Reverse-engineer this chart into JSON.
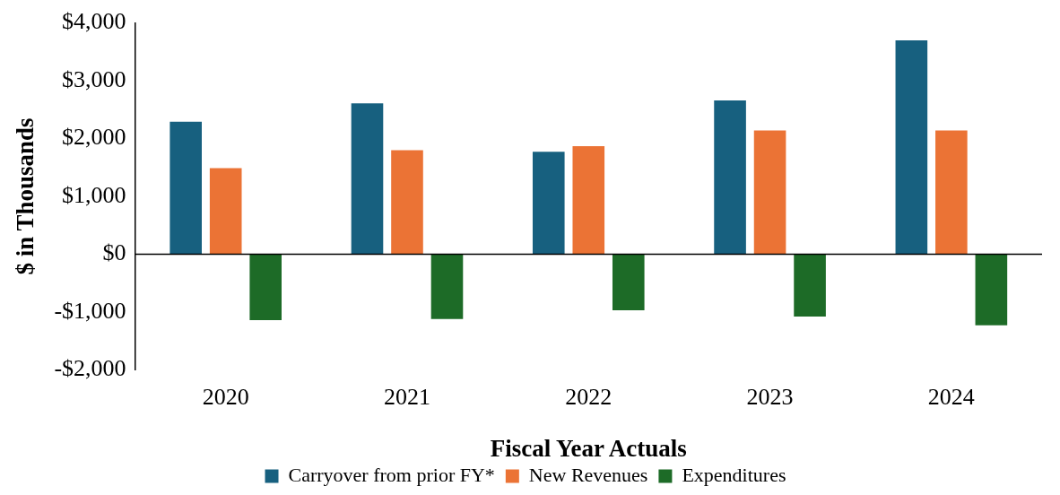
{
  "chart_data": {
    "type": "bar",
    "xlabel": "Fiscal Year Actuals",
    "ylabel": "$ in Thousands",
    "categories": [
      "2020",
      "2021",
      "2022",
      "2023",
      "2024"
    ],
    "series": [
      {
        "name": "Carryover from prior FY*",
        "color": "#17607f",
        "values": [
          2290,
          2610,
          1770,
          2660,
          3700
        ]
      },
      {
        "name": "New Revenues",
        "color": "#eb7335",
        "values": [
          1490,
          1800,
          1870,
          2140,
          2140
        ]
      },
      {
        "name": "Expenditures",
        "color": "#1d6b27",
        "values": [
          -1140,
          -1120,
          -970,
          -1080,
          -1230
        ]
      }
    ],
    "ylim": [
      -2000,
      4000
    ],
    "yticks": [
      {
        "value": -2000,
        "label": "-$2,000"
      },
      {
        "value": -1000,
        "label": "-$1,000"
      },
      {
        "value": 0,
        "label": "$0"
      },
      {
        "value": 1000,
        "label": "$1,000"
      },
      {
        "value": 2000,
        "label": "$2,000"
      },
      {
        "value": 3000,
        "label": "$3,000"
      },
      {
        "value": 4000,
        "label": "$4,000"
      }
    ],
    "ref_lines": [
      {
        "axis": "y",
        "value": 0,
        "color": "#000000"
      }
    ],
    "grid": false,
    "legend": "bottom"
  }
}
